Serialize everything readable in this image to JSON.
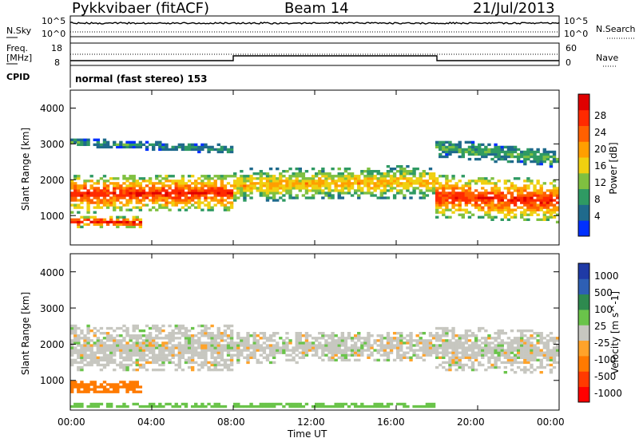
{
  "header": {
    "title": "Pykkvibaer (fitACF)",
    "beam": "Beam 14",
    "date": "21/Jul/2013"
  },
  "top_panels": {
    "nsky_label": "N.Sky",
    "nsky_top_tick": "10^5",
    "nsky_bottom_tick": "10^0",
    "nsearch_label": "N.Search",
    "nsearch_top_tick": "10^5",
    "nsearch_bottom_tick": "10^0",
    "freq_label": "Freq.",
    "freq_unit": "[MHz]",
    "freq_ticks": [
      "18",
      "8"
    ],
    "nave_label": "Nave",
    "nave_ticks": [
      "60",
      "0"
    ],
    "cpid_label": "CPID",
    "cpid_text": "normal (fast stereo) 153"
  },
  "colors": {
    "power": [
      "#0030ff",
      "#1f6a8c",
      "#2f9a63",
      "#7fc040",
      "#f0d010",
      "#ff9f00",
      "#ff6000",
      "#ff2a00",
      "#e00000"
    ],
    "velocity": [
      "#1f3aa6",
      "#2e5fb4",
      "#2e8a4f",
      "#6ac44a",
      "#c7c7c0",
      "#ffa32a",
      "#ff7a00",
      "#ff3a00",
      "#ff0000"
    ]
  },
  "chart_data": [
    {
      "type": "heatmap",
      "title": "Power",
      "ylabel": "Slant Range [km]",
      "xlabel": "Time UT",
      "x_ticks": [
        "00:00",
        "04:00",
        "08:00",
        "12:00",
        "16:00",
        "20:00",
        "00:00"
      ],
      "x_range_hours": [
        0,
        24
      ],
      "y_ticks": [
        "1000",
        "2000",
        "3000",
        "4000"
      ],
      "ylim": [
        180,
        4500
      ],
      "colorbar": {
        "label": "Power [dB]",
        "ticks": [
          "4",
          "8",
          "12",
          "16",
          "20",
          "24",
          "28"
        ],
        "range": [
          0,
          30
        ]
      },
      "bands": [
        {
          "t0": 0,
          "t1": 8,
          "center_start": 1600,
          "center_end": 1650,
          "halfwidth": 520,
          "peak_db": 26
        },
        {
          "t0": 8,
          "t1": 18,
          "center_start": 1850,
          "center_end": 1950,
          "halfwidth": 450,
          "peak_db": 18
        },
        {
          "t0": 18,
          "t1": 24,
          "center_start": 1550,
          "center_end": 1400,
          "halfwidth": 600,
          "peak_db": 26
        },
        {
          "t0": 0,
          "t1": 3.5,
          "center_start": 850,
          "center_end": 800,
          "halfwidth": 170,
          "peak_db": 27
        },
        {
          "t0": 0,
          "t1": 8,
          "center_start": 3050,
          "center_end": 2850,
          "halfwidth": 120,
          "peak_db": 8
        },
        {
          "t0": 18,
          "t1": 24,
          "center_start": 2900,
          "center_end": 2600,
          "halfwidth": 250,
          "peak_db": 10
        }
      ]
    },
    {
      "type": "heatmap",
      "title": "Velocity",
      "ylabel": "Slant Range [km]",
      "xlabel": "Time UT",
      "x_ticks": [
        "00:00",
        "04:00",
        "08:00",
        "12:00",
        "16:00",
        "20:00",
        "00:00"
      ],
      "x_range_hours": [
        0,
        24
      ],
      "y_ticks": [
        "1000",
        "2000",
        "3000",
        "4000"
      ],
      "ylim": [
        180,
        4500
      ],
      "colorbar": {
        "label": "Velocity [m s^-1]",
        "ticks": [
          "1000",
          "500",
          "100",
          "25",
          "-25",
          "-100",
          "-500",
          "-1000"
        ]
      },
      "bands": [
        {
          "t0": 0,
          "t1": 8,
          "center_start": 1900,
          "center_end": 1900,
          "halfwidth": 650,
          "value": 0
        },
        {
          "t0": 8,
          "t1": 18,
          "center_start": 1900,
          "center_end": 1950,
          "halfwidth": 420,
          "value": 0
        },
        {
          "t0": 18,
          "t1": 24,
          "center_start": 1900,
          "center_end": 1750,
          "halfwidth": 600,
          "value": 0
        },
        {
          "t0": 0,
          "t1": 3.5,
          "center_start": 850,
          "center_end": 800,
          "halfwidth": 170,
          "value": -300
        },
        {
          "t0": 0,
          "t1": 18,
          "center_start": 300,
          "center_end": 300,
          "halfwidth": 80,
          "value": 60
        }
      ]
    }
  ]
}
